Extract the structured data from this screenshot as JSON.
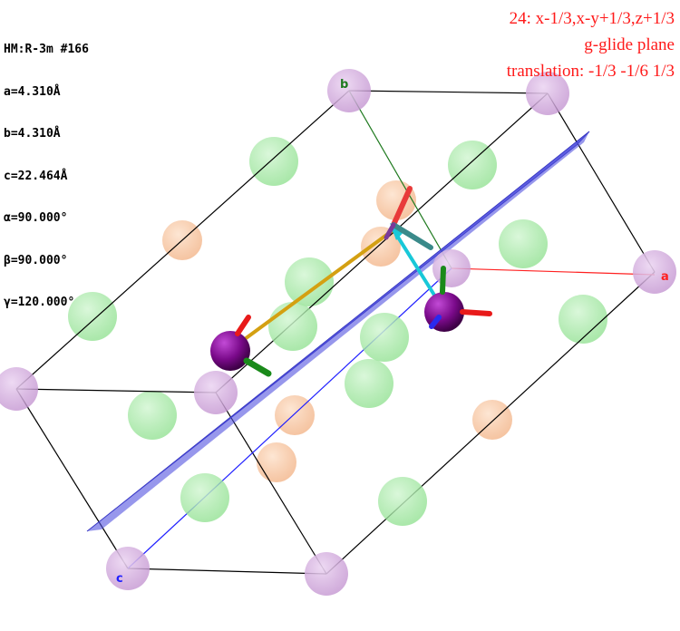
{
  "cell_info": {
    "space_group": "HM:R-3m #166",
    "a": "a=4.310Å",
    "b": "b=4.310Å",
    "c": "c=22.464Å",
    "alpha": "α=90.000°",
    "beta": "β=90.000°",
    "gamma": "γ=120.000°"
  },
  "symmetry_op": {
    "operation": "24: x-1/3,x-y+1/3,z+1/3",
    "element": "g-glide plane",
    "translation": "translation: -1/3 -1/6 1/3"
  },
  "axes": {
    "a_label": "a",
    "b_label": "b",
    "c_label": "c"
  },
  "colors": {
    "a_axis": "#ff2020",
    "b_axis": "#1f7a1f",
    "c_axis": "#2020ff",
    "glide_plane": "#3a3ad6",
    "corner_atom": "#c9a0d6",
    "green_atom": "#98e898",
    "orange_atom": "#f4b98a",
    "marked_atom": "#7a0a8a",
    "op_text": "#ff1a1a"
  }
}
